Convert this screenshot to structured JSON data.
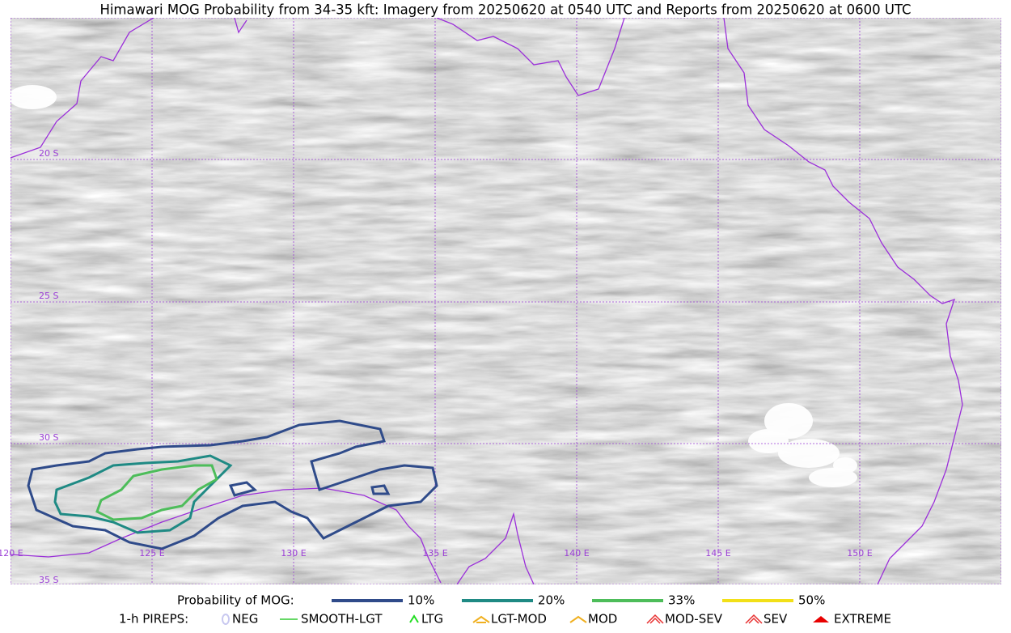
{
  "title": "Himawari MOG Probability from 34-35 kft: Imagery from 20250620 at 0540 UTC and Reports from 20250620 at 0600 UTC",
  "map": {
    "lat_labels": [
      "20 S",
      "25 S",
      "30 S",
      "35 S"
    ],
    "lon_labels": [
      "120 E",
      "125 E",
      "130 E",
      "135 E",
      "140 E",
      "145 E",
      "150 E"
    ],
    "grid_color": "#9b3fd6",
    "coast_color": "#9b30d9"
  },
  "legend": {
    "mog_title": "Probability of MOG:",
    "mog_levels": [
      {
        "label": "10%",
        "color": "#2f4b8a"
      },
      {
        "label": "20%",
        "color": "#1f8a84"
      },
      {
        "label": "33%",
        "color": "#4dbd5a"
      },
      {
        "label": "50%",
        "color": "#f2e018"
      }
    ],
    "pirep_title": "1-h PIREPS:",
    "pireps": [
      {
        "label": "NEG",
        "color": "#c8c8f0"
      },
      {
        "label": "SMOOTH-LGT",
        "color": "#33cc33"
      },
      {
        "label": "LTG",
        "color": "#22dd22"
      },
      {
        "label": "LGT-MOD",
        "color": "#f0b020"
      },
      {
        "label": "MOD",
        "color": "#f0b020"
      },
      {
        "label": "MOD-SEV",
        "color": "#e83030"
      },
      {
        "label": "SEV",
        "color": "#e83030"
      },
      {
        "label": "EXTREME",
        "color": "#e80000"
      }
    ]
  }
}
